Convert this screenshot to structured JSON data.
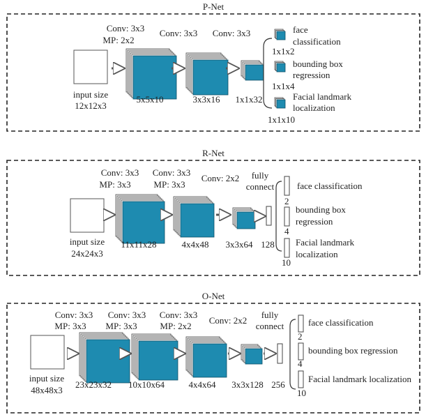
{
  "colors": {
    "block": "#1e8bb0",
    "block_edge": "#0d4f66",
    "sheet": "#ffffff",
    "sheet_edge": "#444444",
    "frame": "#222222"
  },
  "pnet": {
    "title": "P-Net",
    "input_label": "input size",
    "input_size": "12x12x3",
    "layer1_conv": "Conv: 3x3",
    "layer1_mp": "MP: 2x2",
    "layer2_conv": "Conv: 3x3",
    "layer3_conv": "Conv: 3x3",
    "dim1": "5x5x10",
    "dim2": "3x3x16",
    "dim3": "1x1x32",
    "out1_line1": "face",
    "out1_line2": "classification",
    "out1_dim": "1x1x2",
    "out2_line1": "bounding box",
    "out2_line2": "regression",
    "out2_dim": "1x1x4",
    "out3_line1": "Facial landmark",
    "out3_line2": "localization",
    "out3_dim": "1x1x10"
  },
  "rnet": {
    "title": "R-Net",
    "input_label": "input size",
    "input_size": "24x24x3",
    "layer1_conv": "Conv: 3x3",
    "layer1_mp": "MP: 3x3",
    "layer2_conv": "Conv: 3x3",
    "layer2_mp": "MP: 3x3",
    "layer3_conv": "Conv: 2x2",
    "fc_line1": "fully",
    "fc_line2": "connect",
    "dim1": "11x11x28",
    "dim2": "4x4x48",
    "dim3": "3x3x64",
    "fc_dim": "128",
    "out1_line1": "face classification",
    "out1_dim": "2",
    "out2_line1": "bounding box",
    "out2_line2": "regression",
    "out2_dim": "4",
    "out3_line1": "Facial landmark",
    "out3_line2": "localization",
    "out3_dim": "10"
  },
  "onet": {
    "title": "O-Net",
    "input_label": "input size",
    "input_size": "48x48x3",
    "layer1_conv": "Conv: 3x3",
    "layer1_mp": "MP: 3x3",
    "layer2_conv": "Conv: 3x3",
    "layer2_mp": "MP: 3x3",
    "layer3_conv": "Conv: 3x3",
    "layer3_mp": "MP: 2x2",
    "layer4_conv": "Conv: 2x2",
    "fc_line1": "fully",
    "fc_line2": "connect",
    "dim1": "23x23x32",
    "dim2": "10x10x64",
    "dim3": "4x4x64",
    "dim4": "3x3x128",
    "fc_dim": "256",
    "out1_line1": "face classification",
    "out1_dim": "2",
    "out2_line1": "bounding box regression",
    "out2_dim": "4",
    "out3_line1": "Facial landmark localization",
    "out3_dim": "10"
  }
}
